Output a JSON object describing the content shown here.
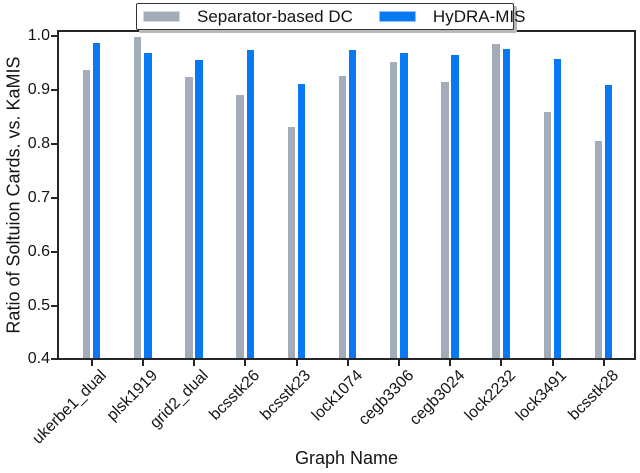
{
  "figure": {
    "background": "#ffffff",
    "text_color": "#141414",
    "spine_color": "#262626"
  },
  "legend": {
    "items": [
      {
        "label": "Separator-based DC",
        "color": "#a2adb9"
      },
      {
        "label": "HyDRA-MIS",
        "color": "#0879f2"
      }
    ]
  },
  "chart_data": {
    "type": "bar",
    "title": "",
    "xlabel": "Graph Name",
    "ylabel": "Ratio of Soltuion Cards. vs. KaMIS",
    "categories": [
      "ukerbe1_dual",
      "plsk1919",
      "grid2_dual",
      "bcsstk26",
      "bcsstk23",
      "lock1074",
      "cegb3306",
      "cegb3024",
      "lock2232",
      "lock3491",
      "bcsstk28"
    ],
    "series": [
      {
        "name": "Separator-based DC",
        "color": "#a2adb9",
        "values": [
          0.935,
          0.996,
          0.921,
          0.888,
          0.829,
          0.923,
          0.949,
          0.912,
          0.983,
          0.856,
          0.802
        ]
      },
      {
        "name": "HyDRA-MIS",
        "color": "#0879f2",
        "values": [
          0.985,
          0.966,
          0.952,
          0.972,
          0.909,
          0.971,
          0.965,
          0.963,
          0.974,
          0.955,
          0.907
        ]
      }
    ],
    "ylim": [
      0.4,
      1.01
    ],
    "y_ticks": [
      1.0,
      0.9,
      0.8,
      0.7,
      0.6,
      0.5,
      0.4
    ],
    "grid": false,
    "legend_position": "upper center",
    "x_tick_rotation": 45
  }
}
